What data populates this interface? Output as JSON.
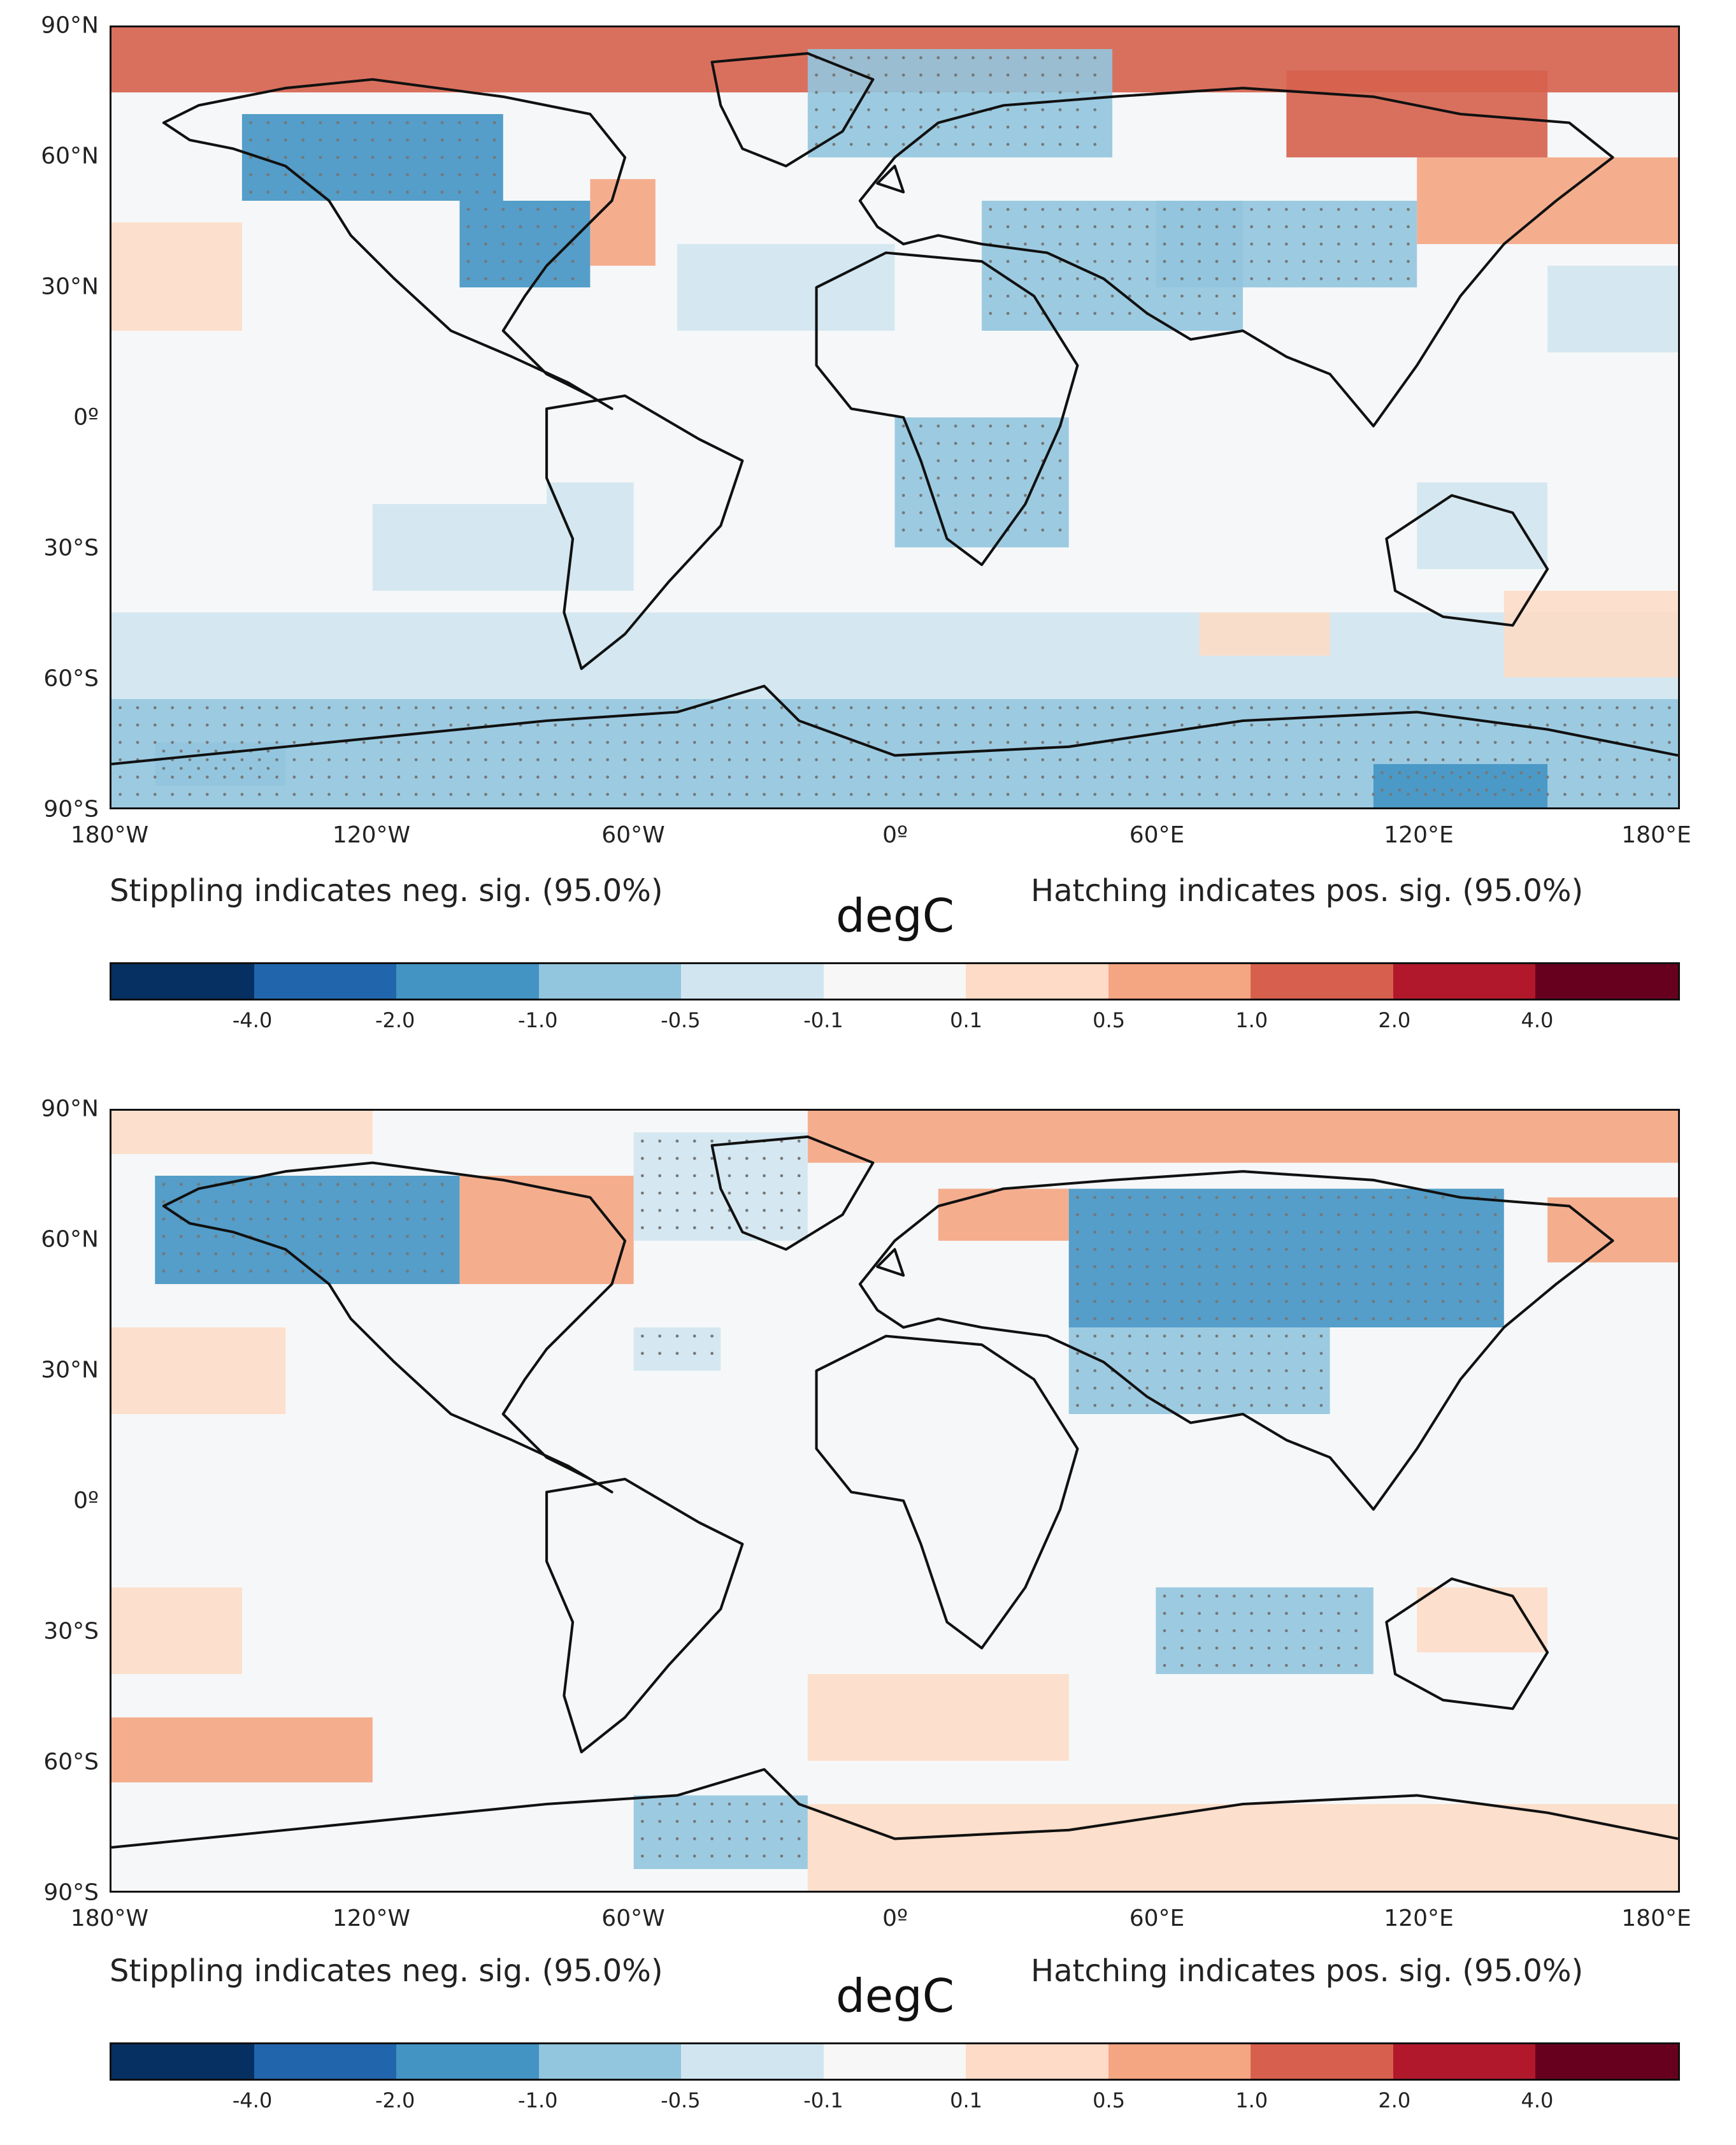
{
  "chart_data": [
    {
      "type": "heatmap",
      "panel": "top",
      "lat_ticks": [
        "90°N",
        "60°N",
        "30°N",
        "0º",
        "30°S",
        "60°S",
        "90°S"
      ],
      "lon_ticks": [
        "180°W",
        "120°W",
        "60°W",
        "0º",
        "60°E",
        "120°E",
        "180°E"
      ],
      "xlim": [
        -180,
        180
      ],
      "ylim": [
        -90,
        90
      ],
      "stippling_note": "Stippling indicates neg. sig. (95.0%)",
      "hatching_note": "Hatching indicates pos. sig. (95.0%)",
      "units": "degC",
      "colorbar_levels": [
        -4.0,
        -2.0,
        -1.0,
        -0.5,
        -0.1,
        0.1,
        0.5,
        1.0,
        2.0,
        4.0
      ],
      "colorbar_labels": [
        "-4.0",
        "-2.0",
        "-1.0",
        "-0.5",
        "-0.1",
        "0.1",
        "0.5",
        "1.0",
        "2.0",
        "4.0"
      ],
      "regions": [
        {
          "lon": [
            -180,
            180
          ],
          "lat": [
            75,
            90
          ],
          "value": 1.2
        },
        {
          "lon": [
            -20,
            50
          ],
          "lat": [
            60,
            85
          ],
          "value": -0.6
        },
        {
          "lon": [
            -150,
            -90
          ],
          "lat": [
            50,
            70
          ],
          "value": -1.8
        },
        {
          "lon": [
            -100,
            -70
          ],
          "lat": [
            30,
            50
          ],
          "value": -1.2
        },
        {
          "lon": [
            -70,
            -55
          ],
          "lat": [
            35,
            55
          ],
          "value": 0.7
        },
        {
          "lon": [
            90,
            150
          ],
          "lat": [
            60,
            80
          ],
          "value": 1.6
        },
        {
          "lon": [
            120,
            180
          ],
          "lat": [
            40,
            60
          ],
          "value": 0.7
        },
        {
          "lon": [
            20,
            80
          ],
          "lat": [
            20,
            50
          ],
          "value": -0.9
        },
        {
          "lon": [
            60,
            120
          ],
          "lat": [
            30,
            50
          ],
          "value": -0.6
        },
        {
          "lon": [
            -50,
            0
          ],
          "lat": [
            20,
            40
          ],
          "value": -0.4
        },
        {
          "lon": [
            150,
            180
          ],
          "lat": [
            15,
            35
          ],
          "value": -0.4
        },
        {
          "lon": [
            -180,
            -150
          ],
          "lat": [
            20,
            45
          ],
          "value": 0.4
        },
        {
          "lon": [
            0,
            40
          ],
          "lat": [
            -30,
            0
          ],
          "value": -0.6
        },
        {
          "lon": [
            -80,
            -60
          ],
          "lat": [
            -40,
            -15
          ],
          "value": -0.4
        },
        {
          "lon": [
            -120,
            -80
          ],
          "lat": [
            -40,
            -20
          ],
          "value": -0.3
        },
        {
          "lon": [
            120,
            150
          ],
          "lat": [
            -35,
            -15
          ],
          "value": -0.3
        },
        {
          "lon": [
            -180,
            180
          ],
          "lat": [
            -65,
            -45
          ],
          "value": -0.3
        },
        {
          "lon": [
            -180,
            180
          ],
          "lat": [
            -90,
            -65
          ],
          "value": -0.7
        },
        {
          "lon": [
            -170,
            -140
          ],
          "lat": [
            -85,
            -75
          ],
          "value": -1.0
        },
        {
          "lon": [
            110,
            150
          ],
          "lat": [
            -90,
            -80
          ],
          "value": -1.3
        },
        {
          "lon": [
            70,
            100
          ],
          "lat": [
            -55,
            -45
          ],
          "value": 0.4
        },
        {
          "lon": [
            140,
            180
          ],
          "lat": [
            -60,
            -40
          ],
          "value": 0.3
        }
      ]
    },
    {
      "type": "heatmap",
      "panel": "bottom",
      "lat_ticks": [
        "90°N",
        "60°N",
        "30°N",
        "0º",
        "30°S",
        "60°S",
        "90°S"
      ],
      "lon_ticks": [
        "180°W",
        "120°W",
        "60°W",
        "0º",
        "60°E",
        "120°E",
        "180°E"
      ],
      "xlim": [
        -180,
        180
      ],
      "ylim": [
        -90,
        90
      ],
      "stippling_note": "Stippling indicates neg. sig. (95.0%)",
      "hatching_note": "Hatching indicates pos. sig. (95.0%)",
      "units": "degC",
      "colorbar_levels": [
        -4.0,
        -2.0,
        -1.0,
        -0.5,
        -0.1,
        0.1,
        0.5,
        1.0,
        2.0,
        4.0
      ],
      "colorbar_labels": [
        "-4.0",
        "-2.0",
        "-1.0",
        "-0.5",
        "-0.1",
        "0.1",
        "0.5",
        "1.0",
        "2.0",
        "4.0"
      ],
      "regions": [
        {
          "lon": [
            -180,
            -120
          ],
          "lat": [
            80,
            90
          ],
          "value": 0.2
        },
        {
          "lon": [
            -20,
            180
          ],
          "lat": [
            78,
            90
          ],
          "value": 0.9
        },
        {
          "lon": [
            -170,
            -100
          ],
          "lat": [
            50,
            75
          ],
          "value": -1.5
        },
        {
          "lon": [
            -100,
            -60
          ],
          "lat": [
            50,
            75
          ],
          "value": 0.6
        },
        {
          "lon": [
            -60,
            -20
          ],
          "lat": [
            60,
            85
          ],
          "value": -0.5
        },
        {
          "lon": [
            10,
            40
          ],
          "lat": [
            60,
            72
          ],
          "value": 0.9
        },
        {
          "lon": [
            40,
            140
          ],
          "lat": [
            40,
            72
          ],
          "value": -1.4
        },
        {
          "lon": [
            40,
            100
          ],
          "lat": [
            20,
            40
          ],
          "value": -0.8
        },
        {
          "lon": [
            150,
            180
          ],
          "lat": [
            55,
            70
          ],
          "value": 0.8
        },
        {
          "lon": [
            -180,
            -140
          ],
          "lat": [
            20,
            40
          ],
          "value": 0.4
        },
        {
          "lon": [
            -60,
            -40
          ],
          "lat": [
            30,
            40
          ],
          "value": -0.5
        },
        {
          "lon": [
            60,
            110
          ],
          "lat": [
            -40,
            -20
          ],
          "value": -0.6
        },
        {
          "lon": [
            -20,
            40
          ],
          "lat": [
            -60,
            -40
          ],
          "value": 0.3
        },
        {
          "lon": [
            -180,
            -120
          ],
          "lat": [
            -65,
            -50
          ],
          "value": 0.5
        },
        {
          "lon": [
            -60,
            -20
          ],
          "lat": [
            -85,
            -68
          ],
          "value": -0.8
        },
        {
          "lon": [
            -20,
            180
          ],
          "lat": [
            -90,
            -70
          ],
          "value": 0.4
        },
        {
          "lon": [
            120,
            150
          ],
          "lat": [
            -35,
            -20
          ],
          "value": 0.4
        },
        {
          "lon": [
            -180,
            -150
          ],
          "lat": [
            -40,
            -20
          ],
          "value": 0.3
        }
      ]
    }
  ],
  "colorbar_colors": [
    "#053061",
    "#2166ac",
    "#4393c3",
    "#92c5de",
    "#d1e5f0",
    "#f7f7f7",
    "#fddbc7",
    "#f4a582",
    "#d6604d",
    "#b2182b",
    "#67001f"
  ],
  "background_color": "#f6f7f8"
}
